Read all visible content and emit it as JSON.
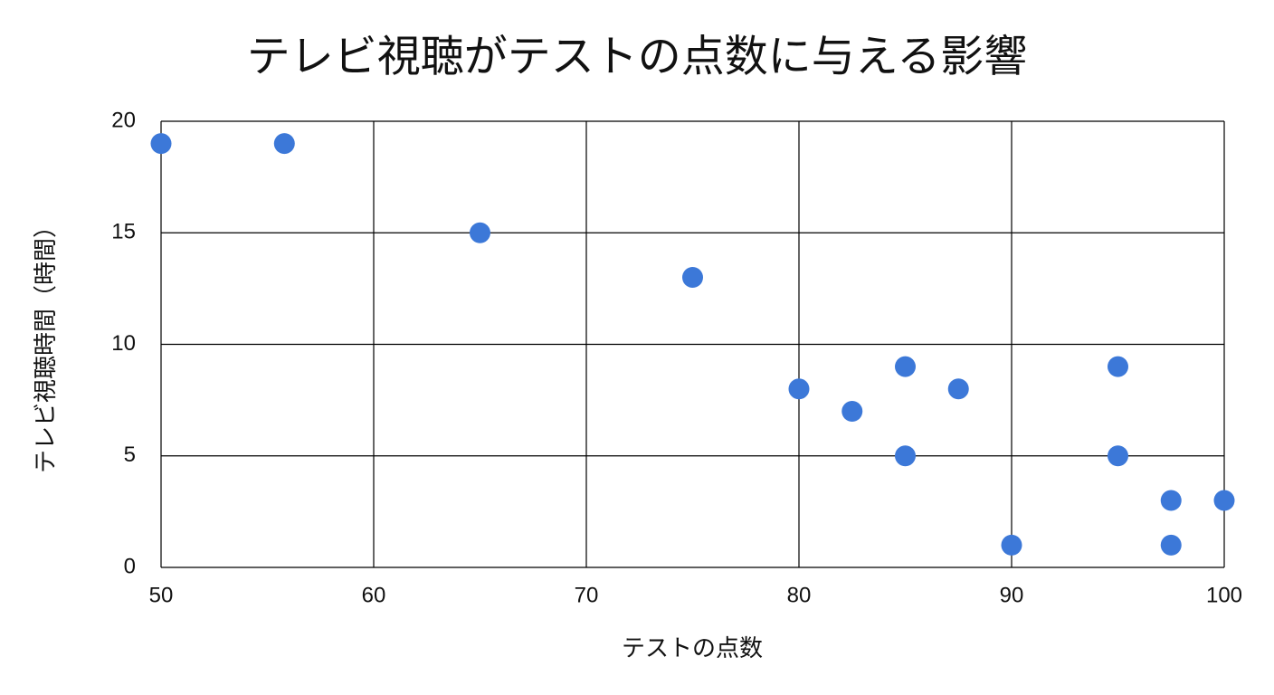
{
  "chart_data": {
    "type": "scatter",
    "title": "テレビ視聴がテストの点数に与える影響",
    "x_label": "テストの点数",
    "y_label": "テレビ視聴時間（時間）",
    "series": [
      {
        "color": "#3c78d8",
        "x": [
          50,
          55.8,
          65,
          75,
          80,
          82.5,
          85,
          85,
          87.5,
          90,
          95,
          95,
          97.5,
          97.5,
          100
        ],
        "values": [
          19,
          19,
          15,
          13,
          8,
          7,
          9,
          5,
          8,
          1,
          9,
          5,
          3,
          1,
          3
        ]
      }
    ],
    "xlim": [
      50,
      100
    ],
    "xticks": [
      50,
      60,
      70,
      80,
      90,
      100
    ],
    "ylim": [
      0,
      20
    ],
    "yticks": [
      0,
      5,
      10,
      15,
      20
    ],
    "grid": true
  }
}
